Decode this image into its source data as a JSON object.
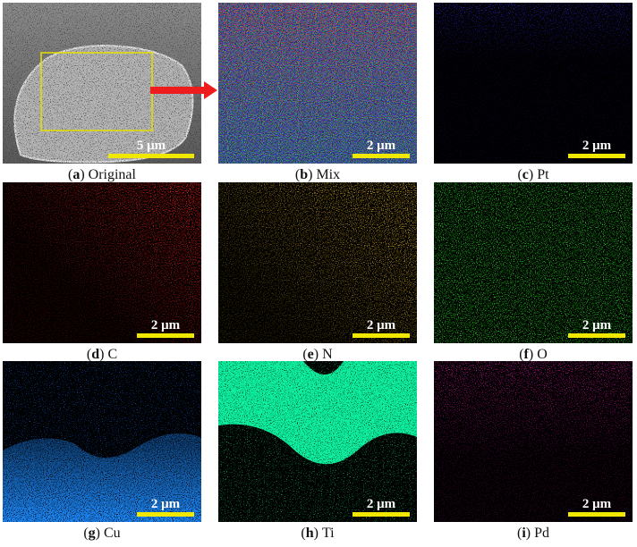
{
  "brackets": [
    "(",
    ")"
  ],
  "panels": [
    {
      "letter": "a",
      "name": "Original",
      "scale": "5 μm"
    },
    {
      "letter": "b",
      "name": "Mix",
      "scale": "2 μm"
    },
    {
      "letter": "c",
      "name": "Pt",
      "scale": "2 μm"
    },
    {
      "letter": "d",
      "name": "C",
      "scale": "2 μm"
    },
    {
      "letter": "e",
      "name": "N",
      "scale": "2 μm"
    },
    {
      "letter": "f",
      "name": "O",
      "scale": "2 μm"
    },
    {
      "letter": "g",
      "name": "Cu",
      "scale": "2 μm"
    },
    {
      "letter": "h",
      "name": "Ti",
      "scale": "2 μm"
    },
    {
      "letter": "i",
      "name": "Pd",
      "scale": "2 μm"
    }
  ]
}
